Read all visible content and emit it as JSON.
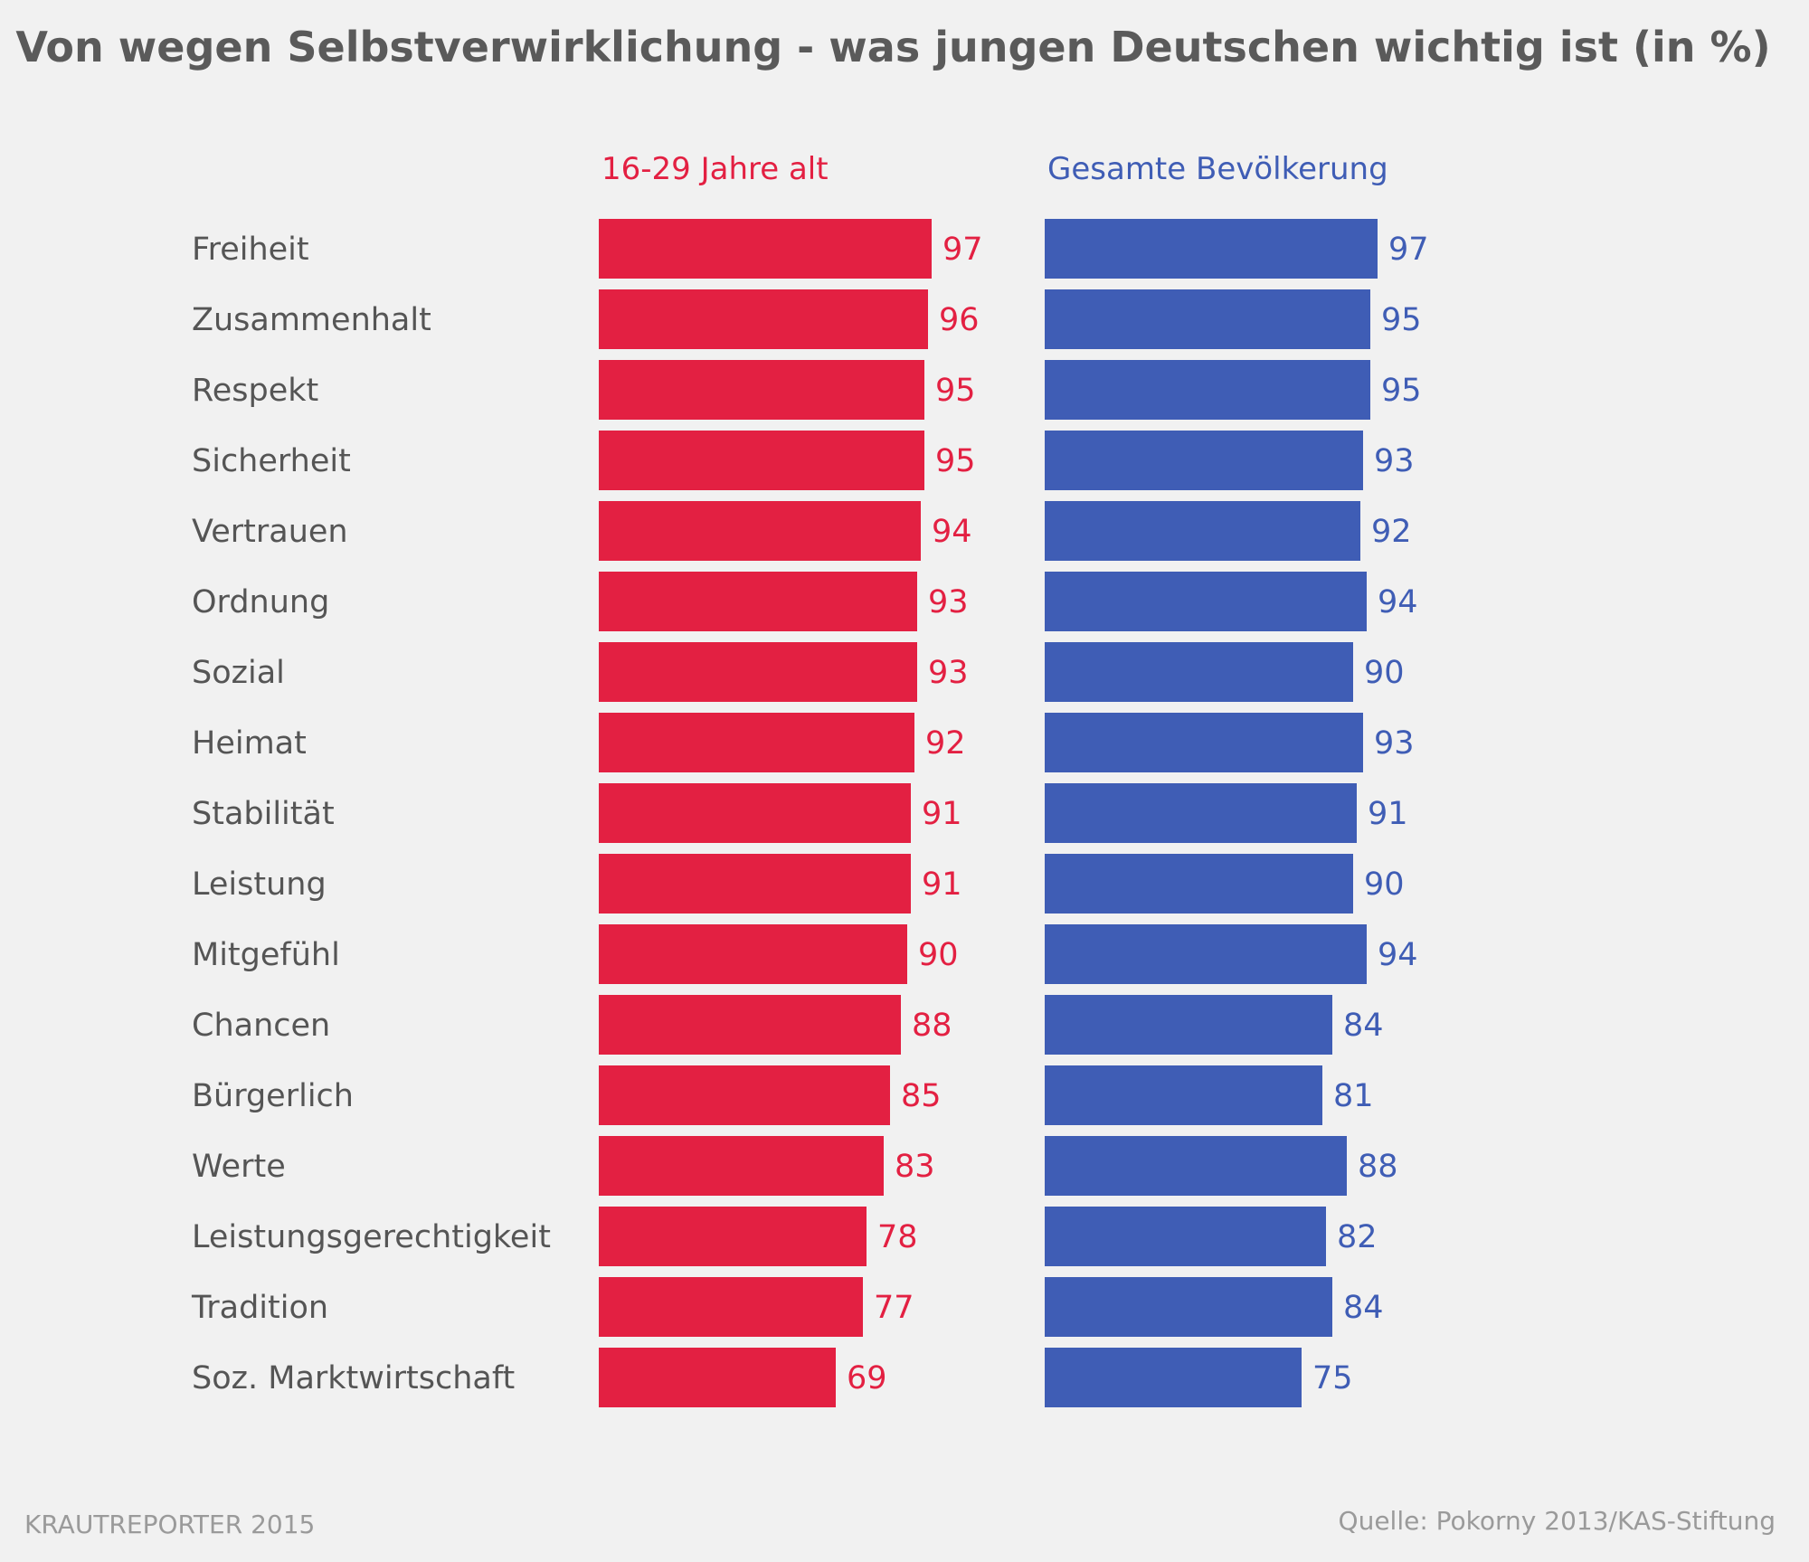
{
  "footer": {
    "left": "KRAUTREPORTER 2015",
    "right": "Quelle: Pokorny 2013/KAS-Stiftung"
  },
  "chart_data": {
    "type": "bar",
    "orientation": "horizontal",
    "title": "Von wegen Selbstverwirklichung - was jungen Deutschen wichtig ist (in %)",
    "categories": [
      "Freiheit",
      "Zusammenhalt",
      "Respekt",
      "Sicherheit",
      "Vertrauen",
      "Ordnung",
      "Sozial",
      "Heimat",
      "Stabilität",
      "Leistung",
      "Mitgefühl",
      "Chancen",
      "Bürgerlich",
      "Werte",
      "Leistungsgerechtigkeit",
      "Tradition",
      "Soz. Marktwirtschaft"
    ],
    "series": [
      {
        "name": "16-29 Jahre alt",
        "color": "#e32042",
        "values": [
          97,
          96,
          95,
          95,
          94,
          93,
          93,
          92,
          91,
          91,
          90,
          88,
          85,
          83,
          78,
          77,
          69
        ]
      },
      {
        "name": "Gesamte Bevölkerung",
        "color": "#3f5db5",
        "values": [
          97,
          95,
          95,
          93,
          92,
          94,
          90,
          93,
          91,
          90,
          94,
          84,
          81,
          88,
          82,
          84,
          75
        ]
      }
    ],
    "xlim": [
      0,
      100
    ],
    "grid": false,
    "legend": "panel headers above each column",
    "data_labels": true
  }
}
